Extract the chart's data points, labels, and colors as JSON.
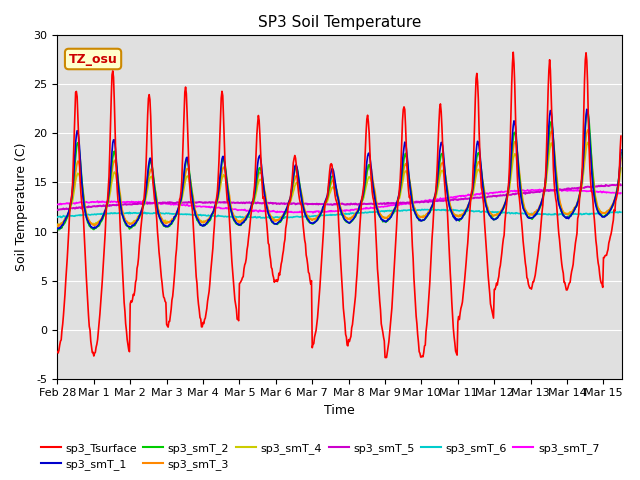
{
  "title": "SP3 Soil Temperature",
  "ylabel": "Soil Temperature (C)",
  "xlabel": "Time",
  "ylim": [
    -5,
    30
  ],
  "xlim": [
    0,
    15.5
  ],
  "xtick_positions": [
    0,
    1,
    2,
    3,
    4,
    5,
    6,
    7,
    8,
    9,
    10,
    11,
    12,
    13,
    14,
    15
  ],
  "xtick_labels": [
    "Feb 28",
    "Mar 1",
    "Mar 2",
    "Mar 3",
    "Mar 4",
    "Mar 5",
    "Mar 6",
    "Mar 7",
    "Mar 8",
    "Mar 9",
    "Mar 10",
    "Mar 11",
    "Mar 12",
    "Mar 13",
    "Mar 14",
    "Mar 15"
  ],
  "ytick_positions": [
    -5,
    0,
    5,
    10,
    15,
    20,
    25,
    30
  ],
  "annotation_text": "TZ_osu",
  "series_colors": {
    "sp3_Tsurface": "#ff0000",
    "sp3_smT_1": "#0000cc",
    "sp3_smT_2": "#00cc00",
    "sp3_smT_3": "#ff8800",
    "sp3_smT_4": "#cccc00",
    "sp3_smT_5": "#cc00cc",
    "sp3_smT_6": "#00cccc",
    "sp3_smT_7": "#ff00ff"
  },
  "bg_color": "#e0e0e0",
  "title_fontsize": 11,
  "label_fontsize": 9,
  "tick_fontsize": 8,
  "legend_fontsize": 8
}
